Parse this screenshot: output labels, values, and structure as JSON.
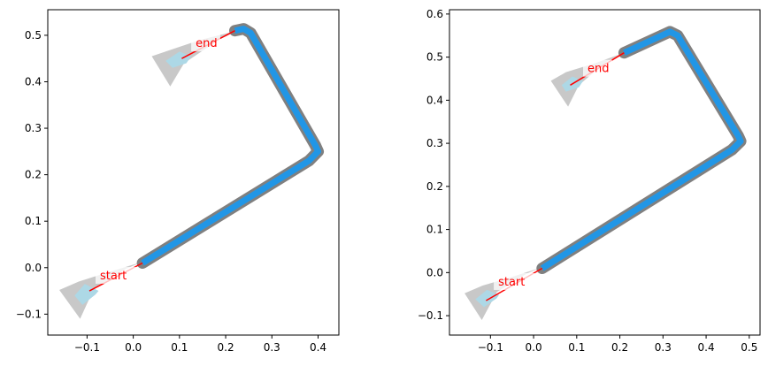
{
  "chart_data": [
    {
      "type": "line",
      "title": "",
      "xlabel": "",
      "ylabel": "",
      "xlim": [
        -0.185,
        0.445
      ],
      "ylim": [
        -0.145,
        0.555
      ],
      "xticks": [
        -0.1,
        0.0,
        0.1,
        0.2,
        0.3,
        0.4
      ],
      "xtick_labels": [
        "−0.1",
        "0.0",
        "0.1",
        "0.2",
        "0.3",
        "0.4"
      ],
      "yticks": [
        -0.1,
        0.0,
        0.1,
        0.2,
        0.3,
        0.4,
        0.5
      ],
      "ytick_labels": [
        "−0.1",
        "0.0",
        "0.1",
        "0.2",
        "0.3",
        "0.4",
        "0.5"
      ],
      "grid": false,
      "series": [
        {
          "role": "path-outline",
          "color": "#808080",
          "x": [
            0.02,
            0.38,
            0.4,
            0.394,
            0.254,
            0.239,
            0.22
          ],
          "y": [
            0.01,
            0.23,
            0.25,
            0.263,
            0.505,
            0.514,
            0.51
          ]
        },
        {
          "role": "path-covered",
          "color": "#2196e6",
          "x": [
            0.02,
            0.38,
            0.4,
            0.394,
            0.254,
            0.239,
            0.22
          ],
          "y": [
            0.01,
            0.23,
            0.25,
            0.263,
            0.505,
            0.514,
            0.51
          ]
        },
        {
          "role": "heading-line",
          "color": "#ff0000",
          "x": [
            -0.095,
            0.02
          ],
          "y": [
            -0.05,
            0.01
          ]
        },
        {
          "role": "heading-line",
          "color": "#ff0000",
          "x": [
            0.105,
            0.22
          ],
          "y": [
            0.45,
            0.51
          ]
        }
      ],
      "regions": [
        {
          "role": "uncertainty-outer",
          "color": "#c8c8c8",
          "x": [
            -0.16,
            -0.118,
            -0.055,
            0.018,
            -0.015,
            -0.085,
            -0.115
          ],
          "y": [
            -0.048,
            -0.03,
            -0.01,
            0.012,
            -0.002,
            -0.045,
            -0.11
          ]
        },
        {
          "role": "uncertainty-inner",
          "color": "#add8e6",
          "x": [
            -0.127,
            -0.105,
            -0.075,
            -0.082,
            -0.11
          ],
          "y": [
            -0.06,
            -0.035,
            -0.05,
            -0.058,
            -0.08
          ]
        },
        {
          "role": "uncertainty-outer",
          "color": "#c8c8c8",
          "x": [
            0.04,
            0.085,
            0.145,
            0.225,
            0.185,
            0.11,
            0.08
          ],
          "y": [
            0.455,
            0.47,
            0.49,
            0.51,
            0.49,
            0.44,
            0.39
          ]
        },
        {
          "role": "uncertainty-inner",
          "color": "#add8e6",
          "x": [
            0.07,
            0.1,
            0.125,
            0.115,
            0.085
          ],
          "y": [
            0.445,
            0.465,
            0.455,
            0.44,
            0.43
          ]
        }
      ],
      "annotations": [
        {
          "text": "start",
          "x": -0.072,
          "y": -0.025
        },
        {
          "text": "end",
          "x": 0.135,
          "y": 0.475
        }
      ]
    },
    {
      "type": "line",
      "title": "",
      "xlabel": "",
      "ylabel": "",
      "xlim": [
        -0.195,
        0.525
      ],
      "ylim": [
        -0.145,
        0.61
      ],
      "xticks": [
        -0.1,
        0.0,
        0.1,
        0.2,
        0.3,
        0.4,
        0.5
      ],
      "xtick_labels": [
        "−0.1",
        "0.0",
        "0.1",
        "0.2",
        "0.3",
        "0.4",
        "0.5"
      ],
      "yticks": [
        -0.1,
        0.0,
        0.1,
        0.2,
        0.3,
        0.4,
        0.5,
        0.6
      ],
      "ytick_labels": [
        "−0.1",
        "0.0",
        "0.1",
        "0.2",
        "0.3",
        "0.4",
        "0.5",
        "0.6"
      ],
      "grid": false,
      "series": [
        {
          "role": "path-outline",
          "color": "#808080",
          "x": [
            0.02,
            0.46,
            0.48,
            0.474,
            0.334,
            0.316,
            0.21
          ],
          "y": [
            0.01,
            0.285,
            0.305,
            0.318,
            0.55,
            0.559,
            0.51
          ]
        },
        {
          "role": "path-covered",
          "color": "#2196e6",
          "x": [
            0.02,
            0.46,
            0.48,
            0.474,
            0.334,
            0.316,
            0.21
          ],
          "y": [
            0.01,
            0.285,
            0.305,
            0.318,
            0.55,
            0.559,
            0.51
          ]
        },
        {
          "role": "heading-line",
          "color": "#ff0000",
          "x": [
            -0.11,
            0.02
          ],
          "y": [
            -0.065,
            0.01
          ]
        },
        {
          "role": "heading-line",
          "color": "#ff0000",
          "x": [
            0.085,
            0.21
          ],
          "y": [
            0.435,
            0.51
          ]
        }
      ],
      "regions": [
        {
          "role": "uncertainty-outer",
          "color": "#c8c8c8",
          "x": [
            -0.16,
            -0.118,
            -0.05,
            0.018,
            -0.015,
            -0.085,
            -0.12
          ],
          "y": [
            -0.048,
            -0.03,
            -0.01,
            0.012,
            -0.002,
            -0.045,
            -0.11
          ]
        },
        {
          "role": "uncertainty-inner",
          "color": "#add8e6",
          "x": [
            -0.135,
            -0.108,
            -0.08,
            -0.086,
            -0.115
          ],
          "y": [
            -0.062,
            -0.04,
            -0.052,
            -0.06,
            -0.08
          ]
        },
        {
          "role": "uncertainty-outer",
          "color": "#c8c8c8",
          "x": [
            0.04,
            0.075,
            0.14,
            0.21,
            0.17,
            0.105,
            0.08
          ],
          "y": [
            0.445,
            0.465,
            0.485,
            0.51,
            0.49,
            0.435,
            0.385
          ]
        },
        {
          "role": "uncertainty-inner",
          "color": "#add8e6",
          "x": [
            0.065,
            0.09,
            0.115,
            0.105,
            0.075
          ],
          "y": [
            0.435,
            0.455,
            0.445,
            0.43,
            0.42
          ]
        }
      ],
      "annotations": [
        {
          "text": "start",
          "x": -0.082,
          "y": -0.03
        },
        {
          "text": "end",
          "x": 0.125,
          "y": 0.465
        }
      ]
    }
  ]
}
